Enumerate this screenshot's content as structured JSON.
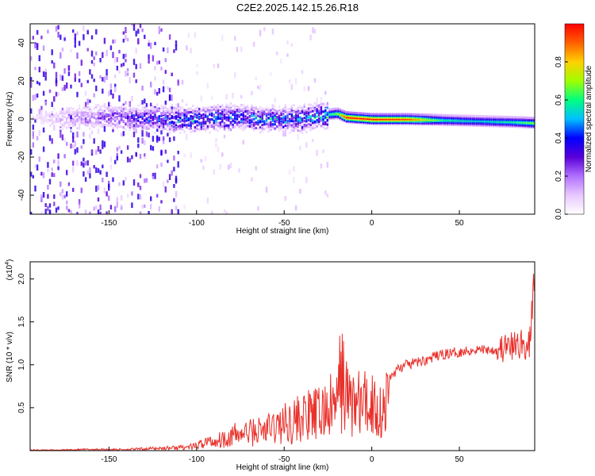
{
  "title": "C2E2.2025.142.15.26.R18",
  "colors": {
    "snr_line": "#e8302a",
    "colormap": [
      "#ffffff",
      "#e8c8ff",
      "#b070ff",
      "#5a00d8",
      "#0000ff",
      "#00c0ff",
      "#00ff80",
      "#a0ff00",
      "#ffd000",
      "#ff6000",
      "#ff0000"
    ]
  },
  "chart_data": [
    {
      "type": "heatmap",
      "title": "",
      "xlabel": "Height of straight line (km)",
      "ylabel": "Frequency (Hz)",
      "xlim": [
        -195,
        93
      ],
      "ylim": [
        -50,
        50
      ],
      "x_ticks": [
        "-150",
        "-100",
        "-50",
        "0",
        "50"
      ],
      "x_tick_values": [
        -150,
        -100,
        -50,
        0,
        50
      ],
      "y_ticks": [
        "40",
        "20",
        "0",
        "-20",
        "-40"
      ],
      "y_tick_values": [
        40,
        20,
        0,
        -20,
        -40
      ],
      "colorbar": {
        "label": "Normalized spectral amplitude",
        "ticks": [
          "0.0",
          "0.2",
          "0.4",
          "0.6",
          "0.8"
        ],
        "tick_values": [
          0.0,
          0.2,
          0.4,
          0.6,
          0.8
        ],
        "range": [
          0,
          1
        ]
      },
      "ridge": {
        "x": [
          -195,
          -150,
          -120,
          -100,
          -80,
          -60,
          -40,
          -30,
          -20,
          -15,
          0,
          20,
          40,
          60,
          80,
          93
        ],
        "freq": [
          0,
          1,
          0,
          0,
          1,
          0,
          0,
          2,
          3,
          1,
          0,
          0,
          -0.5,
          -1,
          -1.5,
          -2
        ],
        "amplitude": [
          0.05,
          0.25,
          0.4,
          0.45,
          0.45,
          0.45,
          0.45,
          0.5,
          0.7,
          1.0,
          1.0,
          0.95,
          0.6,
          0.55,
          0.6,
          0.7
        ]
      }
    },
    {
      "type": "line",
      "title": "",
      "xlabel": "Height of straight line (km)",
      "ylabel": "SNR (10 * v/v)",
      "y_multiplier": "(x10",
      "y_multiplier_exp": "4",
      "y_multiplier_close": ")",
      "xlim": [
        -195,
        93
      ],
      "ylim": [
        0,
        2.2
      ],
      "x_ticks": [
        "-150",
        "-100",
        "-50",
        "0",
        "50"
      ],
      "x_tick_values": [
        -150,
        -100,
        -50,
        0,
        50
      ],
      "y_ticks": [
        "2.0",
        "1.5",
        "1.0",
        "0.5"
      ],
      "y_tick_values": [
        2.0,
        1.5,
        1.0,
        0.5
      ],
      "series": [
        {
          "x": [
            -195,
            -180,
            -160,
            -140,
            -130,
            -120,
            -110,
            -100,
            -95,
            -90,
            -80,
            -70,
            -60,
            -50,
            -40,
            -30,
            -25,
            -20,
            -17,
            -15,
            -10,
            -5,
            0,
            5,
            10,
            15,
            20,
            30,
            40,
            50,
            60,
            70,
            80,
            85,
            90,
            93
          ],
          "y": [
            0.01,
            0.01,
            0.02,
            0.02,
            0.03,
            0.04,
            0.05,
            0.07,
            0.15,
            0.15,
            0.25,
            0.3,
            0.35,
            0.45,
            0.55,
            0.6,
            0.7,
            0.75,
            1.35,
            0.9,
            0.8,
            0.75,
            0.8,
            0.65,
            0.85,
            0.95,
            1.0,
            1.05,
            1.12,
            1.15,
            1.18,
            1.18,
            1.2,
            1.25,
            1.2,
            2.1
          ]
        }
      ]
    }
  ]
}
